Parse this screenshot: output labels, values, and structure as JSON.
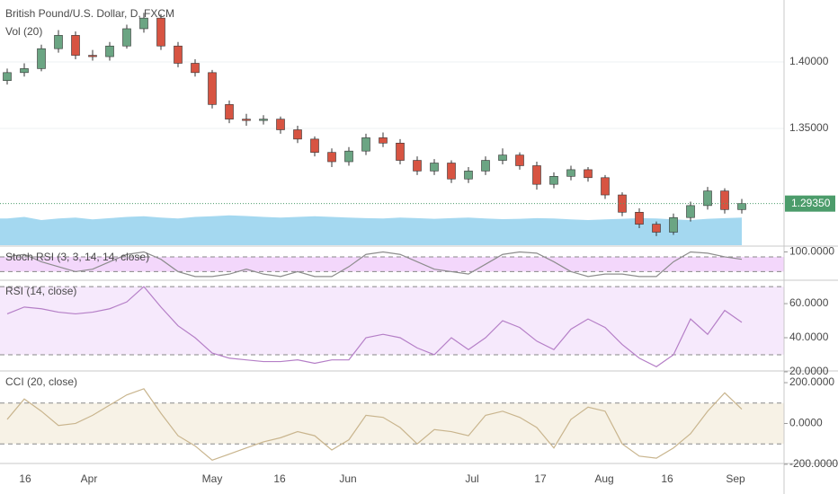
{
  "chart_data": [
    {
      "type": "candlestick",
      "title": "British Pound/U.S. Dollar, D, FXCM",
      "subtitle": "Vol (20)",
      "candles": [
        [
          1.386,
          1.395,
          1.383,
          1.392
        ],
        [
          1.392,
          1.399,
          1.389,
          1.395
        ],
        [
          1.395,
          1.413,
          1.393,
          1.41
        ],
        [
          1.41,
          1.424,
          1.407,
          1.42
        ],
        [
          1.42,
          1.423,
          1.402,
          1.405
        ],
        [
          1.405,
          1.409,
          1.401,
          1.404
        ],
        [
          1.404,
          1.415,
          1.401,
          1.412
        ],
        [
          1.412,
          1.428,
          1.41,
          1.425
        ],
        [
          1.425,
          1.437,
          1.422,
          1.433
        ],
        [
          1.433,
          1.436,
          1.409,
          1.412
        ],
        [
          1.412,
          1.415,
          1.396,
          1.399
        ],
        [
          1.399,
          1.402,
          1.389,
          1.392
        ],
        [
          1.392,
          1.394,
          1.365,
          1.368
        ],
        [
          1.368,
          1.371,
          1.354,
          1.357
        ],
        [
          1.357,
          1.361,
          1.352,
          1.356
        ],
        [
          1.356,
          1.36,
          1.353,
          1.357
        ],
        [
          1.357,
          1.359,
          1.346,
          1.349
        ],
        [
          1.349,
          1.352,
          1.339,
          1.342
        ],
        [
          1.342,
          1.344,
          1.329,
          1.332
        ],
        [
          1.332,
          1.335,
          1.321,
          1.325
        ],
        [
          1.325,
          1.336,
          1.322,
          1.333
        ],
        [
          1.333,
          1.346,
          1.33,
          1.343
        ],
        [
          1.343,
          1.347,
          1.336,
          1.339
        ],
        [
          1.339,
          1.342,
          1.323,
          1.326
        ],
        [
          1.326,
          1.329,
          1.315,
          1.318
        ],
        [
          1.318,
          1.327,
          1.315,
          1.324
        ],
        [
          1.324,
          1.326,
          1.309,
          1.312
        ],
        [
          1.312,
          1.321,
          1.309,
          1.318
        ],
        [
          1.318,
          1.329,
          1.315,
          1.326
        ],
        [
          1.326,
          1.335,
          1.323,
          1.33
        ],
        [
          1.33,
          1.332,
          1.319,
          1.322
        ],
        [
          1.322,
          1.325,
          1.304,
          1.308
        ],
        [
          1.308,
          1.317,
          1.305,
          1.314
        ],
        [
          1.314,
          1.322,
          1.311,
          1.319
        ],
        [
          1.319,
          1.321,
          1.31,
          1.313
        ],
        [
          1.313,
          1.315,
          1.297,
          1.3
        ],
        [
          1.3,
          1.302,
          1.284,
          1.287
        ],
        [
          1.287,
          1.29,
          1.275,
          1.278
        ],
        [
          1.278,
          1.28,
          1.269,
          1.272
        ],
        [
          1.272,
          1.286,
          1.27,
          1.283
        ],
        [
          1.283,
          1.295,
          1.28,
          1.292
        ],
        [
          1.292,
          1.306,
          1.289,
          1.303
        ],
        [
          1.303,
          1.305,
          1.286,
          1.289
        ],
        [
          1.289,
          1.297,
          1.286,
          1.2935
        ]
      ],
      "ylim": [
        1.2622,
        1.4466
      ],
      "yticks": [
        {
          "value": 1.4,
          "label": "1.40000"
        },
        {
          "value": 1.35,
          "label": "1.35000"
        }
      ],
      "last_price": {
        "value": 1.2935,
        "label": "1.29350"
      },
      "x_labels": [
        "16",
        "Apr",
        "May",
        "16",
        "Jun",
        "Jul",
        "17",
        "Aug",
        "16",
        "Sep"
      ],
      "up_color": "#6ba583",
      "down_color": "#d75442",
      "volume": {
        "color": "#7ec8ea",
        "ylim": [
          0,
          100
        ],
        "values": [
          85,
          90,
          80,
          85,
          88,
          82,
          86,
          90,
          92,
          88,
          85,
          90,
          92,
          95,
          93,
          90,
          88,
          90,
          92,
          90,
          88,
          86,
          85,
          88,
          86,
          84,
          86,
          88,
          85,
          83,
          84,
          86,
          85,
          82,
          80,
          82,
          84,
          86,
          85,
          82,
          80,
          84,
          86,
          88
        ]
      }
    },
    {
      "type": "line",
      "title": "Stoch RSI (3, 3, 14, 14, close)",
      "color": "#8d8d8d",
      "band_color": "#f3d7fb",
      "values": [
        80,
        90,
        60,
        40,
        20,
        30,
        60,
        90,
        100,
        70,
        20,
        0,
        0,
        10,
        30,
        10,
        0,
        20,
        0,
        0,
        40,
        90,
        100,
        90,
        60,
        30,
        20,
        10,
        50,
        90,
        100,
        95,
        60,
        20,
        0,
        10,
        10,
        0,
        0,
        60,
        100,
        95,
        80,
        70
      ],
      "ylim": [
        -15,
        120
      ],
      "yticks": [
        {
          "value": 100,
          "label": "100.0000"
        }
      ],
      "bands": [
        80,
        20
      ]
    },
    {
      "type": "line",
      "title": "RSI (14, close)",
      "color": "#b57fc7",
      "band_color": "#f6e9fc",
      "values": [
        54,
        58,
        57,
        55,
        54,
        55,
        57,
        61,
        70,
        58,
        47,
        40,
        31,
        28,
        27,
        26,
        26,
        27,
        25,
        27,
        27,
        40,
        42,
        40,
        34,
        30,
        40,
        33,
        40,
        50,
        46,
        38,
        33,
        45,
        51,
        46,
        36,
        28,
        23,
        30,
        51,
        42,
        56,
        49
      ],
      "ylim": [
        20.5,
        73.2
      ],
      "yticks": [
        {
          "value": 60,
          "label": "60.0000"
        },
        {
          "value": 40,
          "label": "40.0000"
        },
        {
          "value": 20,
          "label": "20.0000"
        }
      ],
      "bands": [
        70,
        30
      ]
    },
    {
      "type": "line",
      "title": "CCI (20, close)",
      "color": "#c9b58e",
      "band_color": "#f7f2e6",
      "values": [
        20,
        120,
        60,
        -10,
        0,
        40,
        90,
        140,
        170,
        50,
        -60,
        -110,
        -180,
        -150,
        -120,
        -90,
        -70,
        -40,
        -60,
        -130,
        -80,
        40,
        30,
        -20,
        -100,
        -30,
        -40,
        -60,
        40,
        60,
        30,
        -20,
        -120,
        20,
        80,
        60,
        -100,
        -160,
        -170,
        -120,
        -50,
        60,
        150,
        70
      ],
      "ylim": [
        -196,
        253
      ],
      "yticks": [
        {
          "value": 200,
          "label": "200.0000"
        },
        {
          "value": 0,
          "label": "0.0000"
        },
        {
          "value": -200,
          "label": "-200.0000"
        }
      ],
      "bands": [
        100,
        -100
      ]
    }
  ]
}
